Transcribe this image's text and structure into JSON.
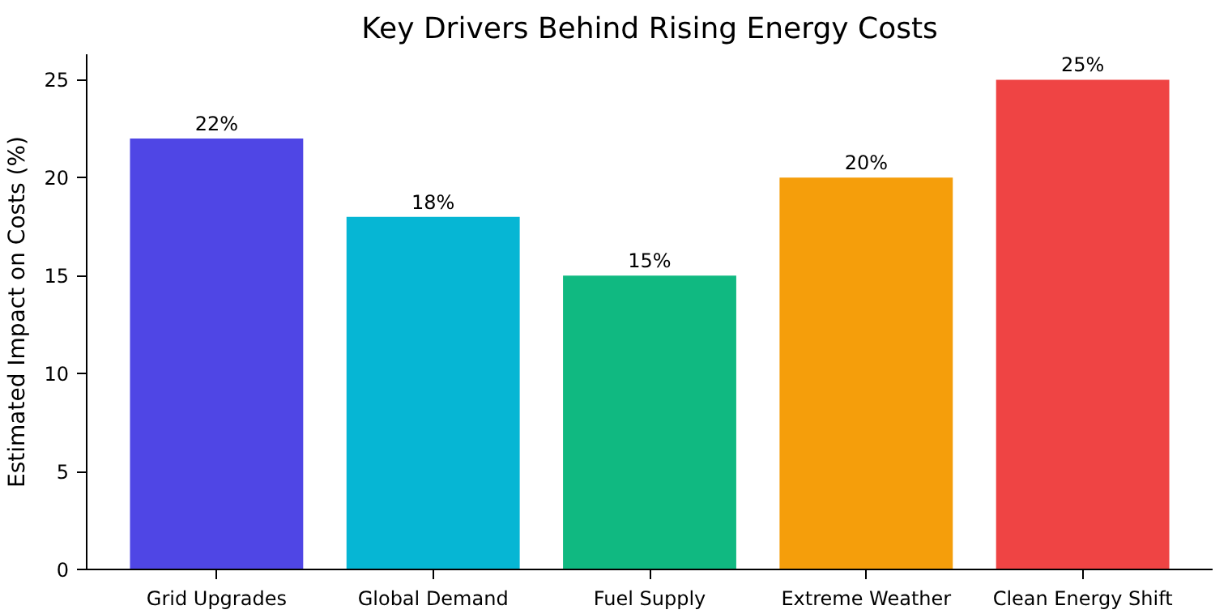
{
  "chart_data": {
    "type": "bar",
    "title": "Key Drivers Behind Rising Energy Costs",
    "ylabel": "Estimated Impact on Costs (%)",
    "categories": [
      "Grid Upgrades",
      "Global Demand",
      "Fuel Supply",
      "Extreme Weather",
      "Clean Energy Shift"
    ],
    "values": [
      22,
      18,
      15,
      20,
      25
    ],
    "colors": [
      "#4f46e5",
      "#06b6d4",
      "#10b981",
      "#f59e0b",
      "#ef4444"
    ],
    "value_labels": [
      "22%",
      "18%",
      "15%",
      "20%",
      "25%"
    ],
    "ylim": [
      0,
      26.3
    ],
    "yticks": [
      0,
      5,
      10,
      15,
      20,
      25
    ],
    "grid": false
  }
}
